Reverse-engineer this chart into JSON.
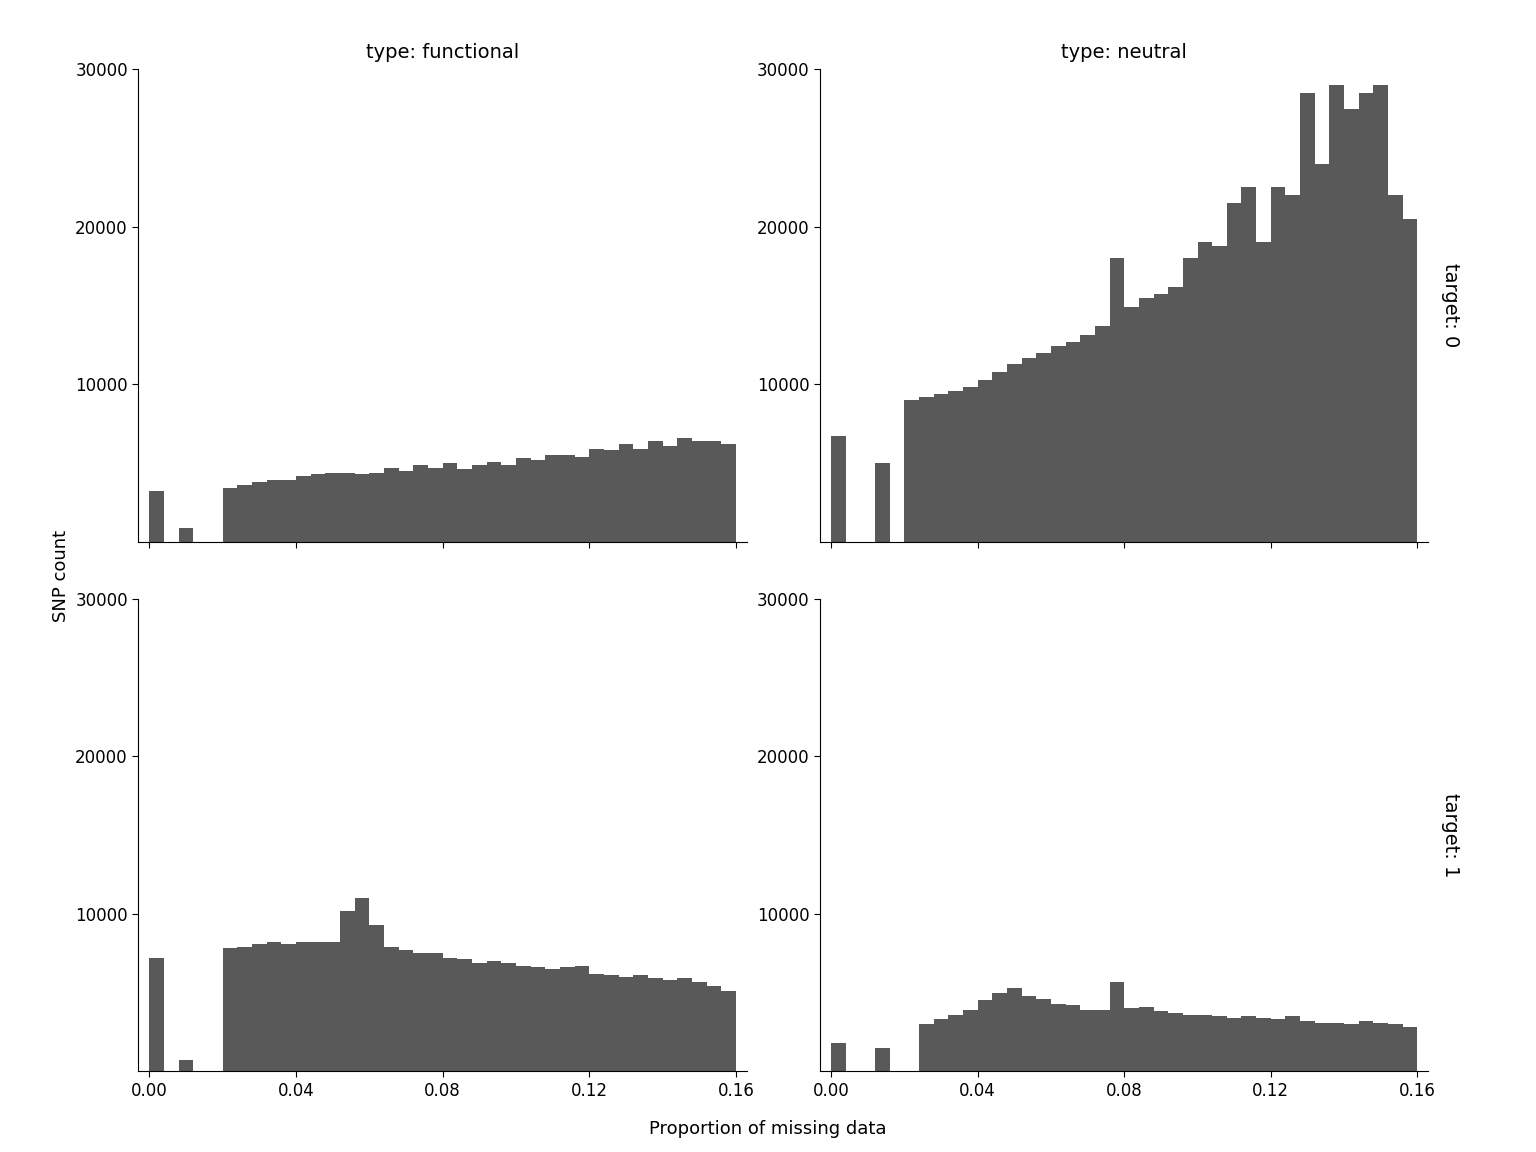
{
  "bar_color": "#595959",
  "background_color": "#ffffff",
  "fig_width": 15.36,
  "fig_height": 11.52,
  "ylim": [
    0,
    30000
  ],
  "yticks": [
    10000,
    20000,
    30000
  ],
  "xlim_left": -0.003,
  "xlim_right": 0.163,
  "xticks": [
    0.0,
    0.04,
    0.08,
    0.12,
    0.16
  ],
  "xlabel": "Proportion of missing data",
  "ylabel": "SNP count",
  "col_labels": [
    "type: functional",
    "type: neutral"
  ],
  "row_labels": [
    "target: 0",
    "target: 1"
  ],
  "title_fontsize": 14,
  "label_fontsize": 13,
  "tick_fontsize": 12,
  "bin_width": 0.004,
  "panels": {
    "func_t0": {
      "bin_starts": [
        0.0,
        0.008,
        0.02,
        0.024,
        0.028,
        0.032,
        0.036,
        0.04,
        0.044,
        0.048,
        0.052,
        0.056,
        0.06,
        0.064,
        0.068,
        0.072,
        0.076,
        0.08,
        0.084,
        0.088,
        0.092,
        0.096,
        0.1,
        0.104,
        0.108,
        0.112,
        0.116,
        0.12,
        0.124,
        0.128,
        0.132,
        0.136,
        0.14,
        0.144,
        0.148,
        0.152,
        0.156
      ],
      "counts": [
        3200,
        900,
        3400,
        3600,
        3800,
        3900,
        3900,
        4200,
        4300,
        4400,
        4400,
        4300,
        4400,
        4700,
        4500,
        4900,
        4700,
        5000,
        4600,
        4900,
        5100,
        4900,
        5300,
        5200,
        5500,
        5500,
        5400,
        5900,
        5800,
        6200,
        5900,
        6400,
        6100,
        6600,
        6400,
        6400,
        6200
      ]
    },
    "neut_t0": {
      "bin_starts": [
        0.0,
        0.012,
        0.02,
        0.024,
        0.028,
        0.032,
        0.036,
        0.04,
        0.044,
        0.048,
        0.052,
        0.056,
        0.06,
        0.064,
        0.068,
        0.072,
        0.076,
        0.08,
        0.084,
        0.088,
        0.092,
        0.096,
        0.1,
        0.104,
        0.108,
        0.112,
        0.116,
        0.12,
        0.124,
        0.128,
        0.132,
        0.136,
        0.14,
        0.144,
        0.148,
        0.152,
        0.156
      ],
      "counts": [
        6700,
        5000,
        9000,
        9200,
        9400,
        9600,
        9800,
        10300,
        10800,
        11300,
        11700,
        12000,
        12400,
        12700,
        13100,
        13700,
        18000,
        14900,
        15500,
        15700,
        16200,
        18000,
        19000,
        18800,
        21500,
        22500,
        19000,
        22500,
        22000,
        28500,
        24000,
        29000,
        27500,
        28500,
        29000,
        22000,
        20500
      ]
    },
    "func_t1": {
      "bin_starts": [
        0.0,
        0.008,
        0.02,
        0.024,
        0.028,
        0.032,
        0.036,
        0.04,
        0.044,
        0.048,
        0.052,
        0.056,
        0.06,
        0.064,
        0.068,
        0.072,
        0.076,
        0.08,
        0.084,
        0.088,
        0.092,
        0.096,
        0.1,
        0.104,
        0.108,
        0.112,
        0.116,
        0.12,
        0.124,
        0.128,
        0.132,
        0.136,
        0.14,
        0.144,
        0.148,
        0.152,
        0.156
      ],
      "counts": [
        7200,
        700,
        7800,
        7900,
        8100,
        8200,
        8100,
        8200,
        8200,
        8200,
        10200,
        11000,
        9300,
        7900,
        7700,
        7500,
        7500,
        7200,
        7100,
        6900,
        7000,
        6900,
        6700,
        6600,
        6500,
        6600,
        6700,
        6200,
        6100,
        6000,
        6100,
        5900,
        5800,
        5900,
        5700,
        5400,
        5100
      ]
    },
    "neut_t1": {
      "bin_starts": [
        0.0,
        0.012,
        0.024,
        0.028,
        0.032,
        0.036,
        0.04,
        0.044,
        0.048,
        0.052,
        0.056,
        0.06,
        0.064,
        0.068,
        0.072,
        0.076,
        0.08,
        0.084,
        0.088,
        0.092,
        0.096,
        0.1,
        0.104,
        0.108,
        0.112,
        0.116,
        0.12,
        0.124,
        0.128,
        0.132,
        0.136,
        0.14,
        0.144,
        0.148,
        0.152,
        0.156
      ],
      "counts": [
        1800,
        1500,
        3000,
        3300,
        3600,
        3900,
        4500,
        5000,
        5300,
        4800,
        4600,
        4300,
        4200,
        3900,
        3900,
        5700,
        4000,
        4100,
        3800,
        3700,
        3600,
        3600,
        3500,
        3400,
        3500,
        3400,
        3300,
        3500,
        3200,
        3100,
        3100,
        3000,
        3200,
        3100,
        3000,
        2800
      ]
    }
  }
}
